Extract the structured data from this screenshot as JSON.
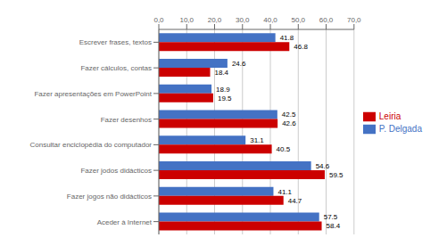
{
  "chart_data": {
    "type": "bar",
    "orientation": "horizontal",
    "categories": [
      "Aceder à Internet",
      "Fazer jogos não didácticos",
      "Fazer jodos didácticos",
      "Consultar enciclopédia do computador",
      "Fazer desenhos",
      "Fazer apresentações em PowerPoint",
      "Fazer cálculos, contas",
      "Escrever frases, textos"
    ],
    "series": [
      {
        "name": "P. Delgada",
        "color": "#4472C4",
        "values": [
          57.5,
          41.1,
          54.6,
          31.1,
          42.5,
          18.9,
          24.6,
          41.8
        ]
      },
      {
        "name": "Leiria",
        "color": "#CC0000",
        "values": [
          58.4,
          44.7,
          59.5,
          40.5,
          42.6,
          19.5,
          18.4,
          46.8
        ]
      }
    ],
    "xlim": [
      0,
      70
    ],
    "xticks": [
      {
        "value": 0,
        "label": "0,0"
      },
      {
        "value": 10,
        "label": "10,0"
      },
      {
        "value": 20,
        "label": "20,0"
      },
      {
        "value": 30,
        "label": "30,0"
      },
      {
        "value": 40,
        "label": "40,0"
      },
      {
        "value": 50,
        "label": "50,0"
      },
      {
        "value": 60,
        "label": "60,0"
      },
      {
        "value": 70,
        "label": "70,0"
      }
    ],
    "grid": true,
    "legend": "right",
    "data_labels": true
  }
}
